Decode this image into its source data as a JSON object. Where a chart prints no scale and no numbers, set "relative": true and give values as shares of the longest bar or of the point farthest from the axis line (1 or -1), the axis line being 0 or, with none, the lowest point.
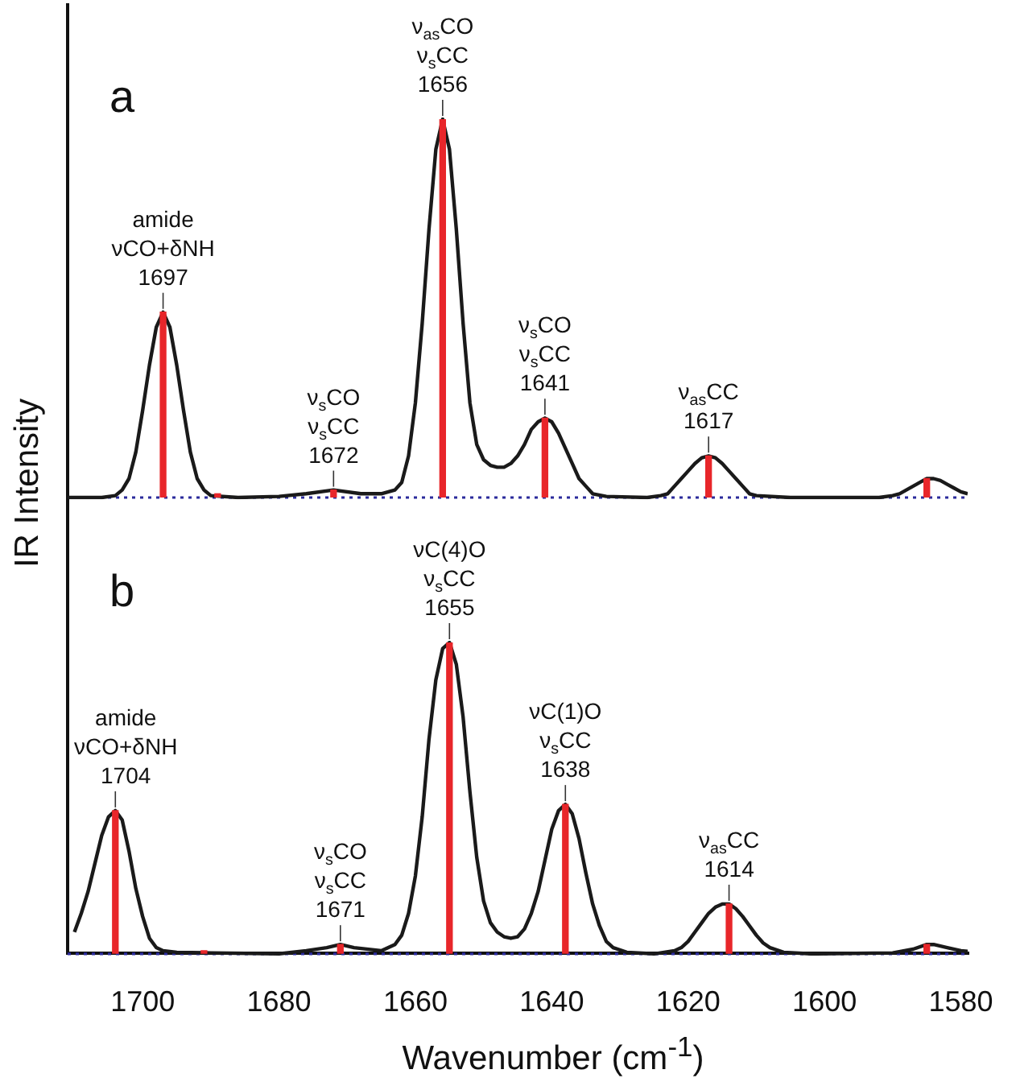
{
  "chart_data": [
    {
      "type": "line",
      "title": "a",
      "ylabel": "IR Intensity",
      "relative": true,
      "xlim": [
        1711,
        1579
      ],
      "tick_labels": false,
      "marker": "none",
      "ref_lines": [
        {
          "axis": "y",
          "value": 0,
          "color": "#2b2b9c",
          "line_style": "dotted"
        }
      ],
      "series": [
        {
          "color": "#1a1a1a",
          "x": [
            1711,
            1706,
            1704,
            1703,
            1702,
            1701,
            1700,
            1699,
            1698,
            1697,
            1696,
            1695,
            1694,
            1693,
            1692,
            1691,
            1690,
            1686,
            1680,
            1676,
            1672,
            1668,
            1665,
            1663,
            1662,
            1661,
            1660,
            1659,
            1658,
            1657,
            1656,
            1655,
            1654,
            1653,
            1652,
            1651,
            1650,
            1649,
            1648,
            1647,
            1646,
            1645,
            1644,
            1643,
            1642,
            1641,
            1640,
            1639,
            1638,
            1637,
            1636,
            1635,
            1634,
            1632,
            1626,
            1624,
            1623,
            1622,
            1621,
            1620,
            1619,
            1618,
            1617,
            1616,
            1615,
            1614,
            1613,
            1612,
            1611,
            1610,
            1605,
            1592,
            1590,
            1589,
            1588,
            1587,
            1586,
            1585,
            1584,
            1583,
            1582,
            1581,
            1580,
            1579
          ],
          "values": [
            0,
            0,
            0.005,
            0.02,
            0.05,
            0.12,
            0.23,
            0.35,
            0.45,
            0.49,
            0.45,
            0.35,
            0.23,
            0.12,
            0.05,
            0.02,
            0.005,
            0,
            0.003,
            0.01,
            0.02,
            0.01,
            0.01,
            0.02,
            0.04,
            0.11,
            0.25,
            0.46,
            0.71,
            0.92,
            1,
            0.92,
            0.71,
            0.46,
            0.25,
            0.14,
            0.1,
            0.085,
            0.08,
            0.08,
            0.09,
            0.11,
            0.14,
            0.18,
            0.2,
            0.21,
            0.2,
            0.17,
            0.13,
            0.09,
            0.05,
            0.03,
            0.01,
            0.003,
            0,
            0.005,
            0.01,
            0.03,
            0.05,
            0.07,
            0.09,
            0.105,
            0.11,
            0.105,
            0.09,
            0.07,
            0.05,
            0.03,
            0.01,
            0.005,
            0,
            0,
            0.005,
            0.01,
            0.02,
            0.03,
            0.04,
            0.05,
            0.05,
            0.045,
            0.035,
            0.025,
            0.015,
            0.01
          ]
        },
        {
          "type": "bar",
          "color": "#e8262a",
          "x": [
            1697,
            1689,
            1672,
            1656,
            1641,
            1617,
            1585
          ],
          "values": [
            0.49,
            0.01,
            0.02,
            1,
            0.21,
            0.11,
            0.05
          ]
        }
      ],
      "annotations": [
        {
          "text": "amide\nνCO+δNH\n1697",
          "x": 1697,
          "y": 0.49
        },
        {
          "text": "ν$_{s}$CO\nν$_{s}$CC\n1672",
          "x": 1672,
          "y": 0.02
        },
        {
          "text": "ν$_{as}$CO\nν$_{s}$CC\n1656",
          "x": 1656,
          "y": 1
        },
        {
          "text": "ν$_{s}$CO\nν$_{s}$CC\n1641",
          "x": 1641,
          "y": 0.21
        },
        {
          "text": "ν$_{as}$CC\n1617",
          "x": 1617,
          "y": 0.11
        }
      ]
    },
    {
      "type": "line",
      "title": "b",
      "xlabel": "Wavenumber (cm$^{-1}$)",
      "relative": true,
      "xlim": [
        1711,
        1579
      ],
      "xticks": [
        1700,
        1680,
        1660,
        1640,
        1620,
        1600,
        1580
      ],
      "tick_labels": "x",
      "marker": "none",
      "ref_lines": [
        {
          "axis": "y",
          "value": 0,
          "color": "#2b2b9c",
          "line_style": "dotted"
        }
      ],
      "series": [
        {
          "color": "#1a1a1a",
          "x": [
            1710,
            1709,
            1708,
            1707,
            1706,
            1705,
            1704,
            1703,
            1702,
            1701,
            1700,
            1699,
            1698,
            1697,
            1695,
            1690,
            1680,
            1676,
            1673,
            1671,
            1669,
            1665,
            1663,
            1662,
            1661,
            1660,
            1659,
            1658,
            1657,
            1656,
            1655,
            1654,
            1653,
            1652,
            1651,
            1650,
            1649,
            1648,
            1647,
            1646,
            1645,
            1644,
            1643,
            1642,
            1641,
            1640,
            1639,
            1638,
            1637,
            1636,
            1635,
            1634,
            1633,
            1632,
            1631,
            1629,
            1625,
            1622,
            1621,
            1620,
            1619,
            1618,
            1617,
            1616,
            1615,
            1614,
            1613,
            1612,
            1611,
            1610,
            1609,
            1608,
            1606,
            1602,
            1590,
            1587,
            1585,
            1584,
            1582,
            1580,
            1579
          ],
          "values": [
            0.07,
            0.13,
            0.2,
            0.29,
            0.38,
            0.44,
            0.46,
            0.43,
            0.33,
            0.21,
            0.12,
            0.05,
            0.02,
            0.01,
            0.005,
            0.003,
            0,
            0.01,
            0.02,
            0.03,
            0.02,
            0.01,
            0.03,
            0.06,
            0.13,
            0.25,
            0.44,
            0.69,
            0.88,
            0.98,
            1,
            0.93,
            0.76,
            0.52,
            0.31,
            0.17,
            0.1,
            0.07,
            0.055,
            0.05,
            0.055,
            0.08,
            0.13,
            0.2,
            0.3,
            0.4,
            0.46,
            0.48,
            0.45,
            0.37,
            0.26,
            0.16,
            0.09,
            0.04,
            0.02,
            0.005,
            0,
            0.01,
            0.02,
            0.04,
            0.07,
            0.1,
            0.13,
            0.15,
            0.16,
            0.16,
            0.145,
            0.12,
            0.09,
            0.06,
            0.035,
            0.02,
            0.005,
            0,
            0.003,
            0.015,
            0.03,
            0.03,
            0.02,
            0.01,
            0.008
          ]
        },
        {
          "type": "bar",
          "color": "#e8262a",
          "x": [
            1704,
            1691,
            1671,
            1655,
            1638,
            1614,
            1585
          ],
          "values": [
            0.46,
            0.01,
            0.03,
            1,
            0.48,
            0.16,
            0.03
          ]
        }
      ],
      "annotations": [
        {
          "text": "amide\nνCO+δNH\n1704",
          "x": 1704,
          "y": 0.46
        },
        {
          "text": "ν$_{s}$CO\nν$_{s}$CC\n1671",
          "x": 1671,
          "y": 0.03
        },
        {
          "text": "νC(4)O\nν$_{s}$CC\n1655",
          "x": 1655,
          "y": 1
        },
        {
          "text": "νC(1)O\nν$_{s}$CC\n1638",
          "x": 1638,
          "y": 0.48
        },
        {
          "text": "ν$_{as}$CC\n1614",
          "x": 1614,
          "y": 0.16
        }
      ]
    }
  ]
}
